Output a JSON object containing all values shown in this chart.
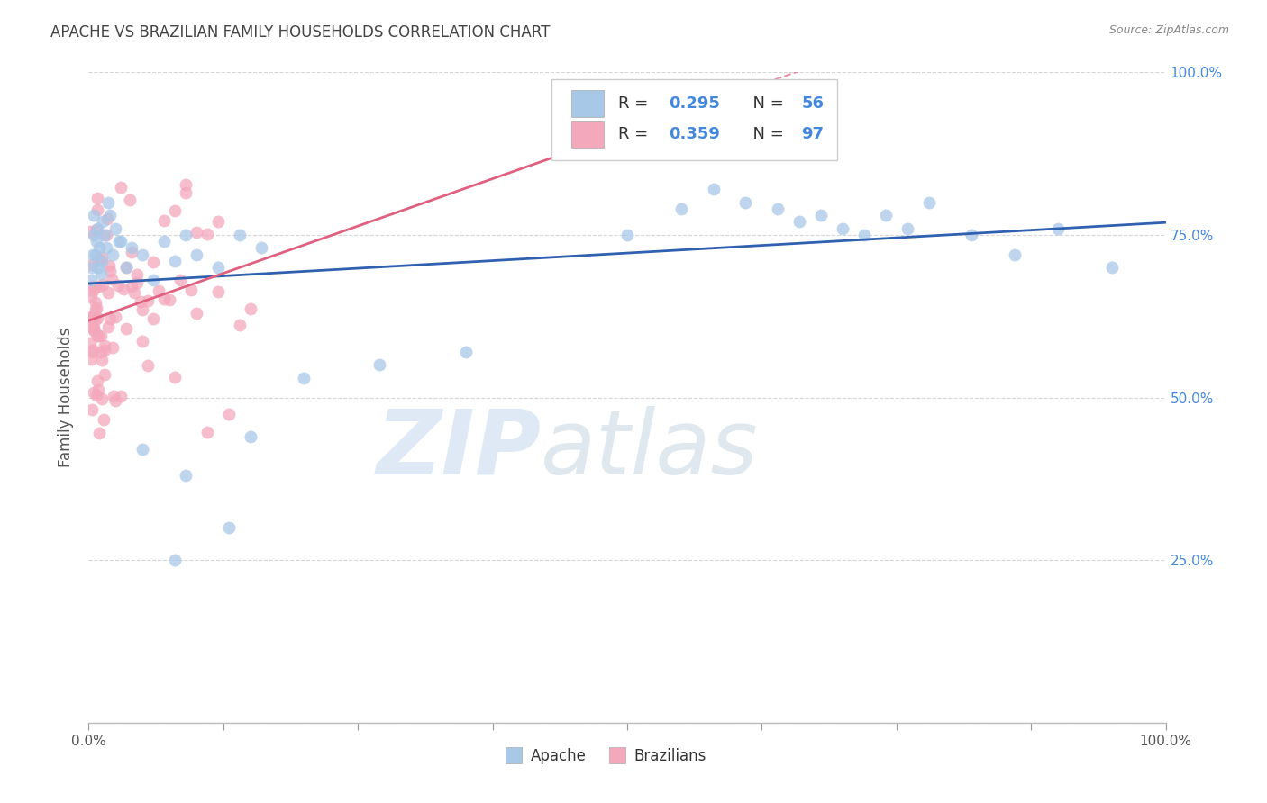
{
  "title": "APACHE VS BRAZILIAN FAMILY HOUSEHOLDS CORRELATION CHART",
  "source": "Source: ZipAtlas.com",
  "ylabel": "Family Households",
  "apache_R": 0.295,
  "apache_N": 56,
  "brazilian_R": 0.359,
  "brazilian_N": 97,
  "apache_color": "#A8C8E8",
  "brazilian_color": "#F4A8BC",
  "trendline_apache_color": "#3060B0",
  "trendline_brazilian_color": "#E06080",
  "background_color": "#FFFFFF",
  "watermark_zip": "ZIP",
  "watermark_atlas": "atlas",
  "legend_box_color": "#EEEEEE",
  "right_tick_color": "#4488DD",
  "title_color": "#444444",
  "source_color": "#888888"
}
